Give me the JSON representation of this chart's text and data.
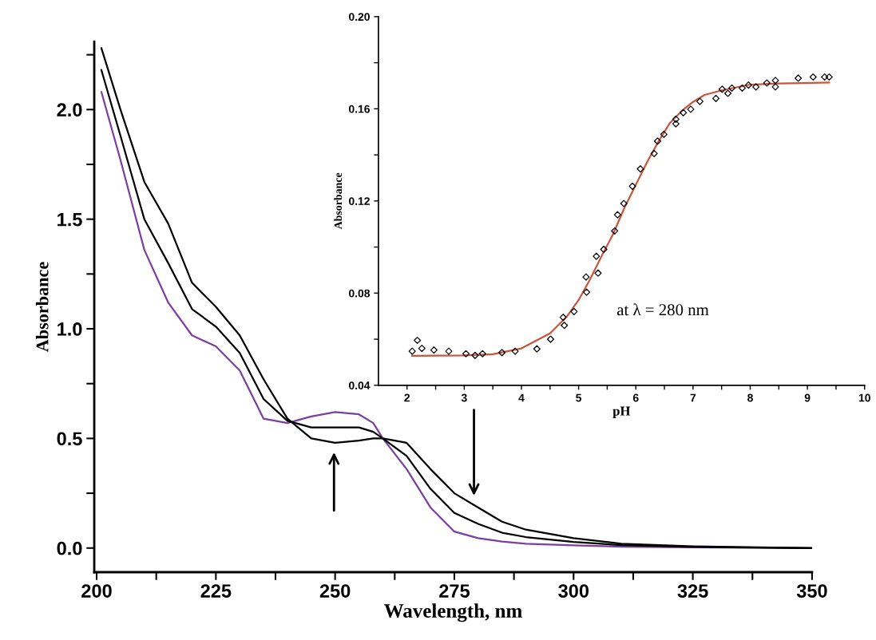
{
  "chart_data": [
    {
      "type": "line",
      "xlabel": "Wavelength, nm",
      "ylabel": "Absorbance",
      "marker": "none",
      "line_style": "solid",
      "grid": false,
      "legend": false,
      "xlim": [
        199.5,
        350
      ],
      "ylim": [
        -0.11,
        2.31
      ],
      "xticks": [
        200,
        {
          "value": 212.5,
          "label": null
        },
        225,
        {
          "value": 237.5,
          "label": null
        },
        250,
        {
          "value": 262.5,
          "label": null
        },
        275,
        {
          "value": 287.5,
          "label": null
        },
        300,
        {
          "value": 312.5,
          "label": null
        },
        325,
        {
          "value": 337.5,
          "label": null
        },
        350
      ],
      "yticks": [
        {
          "value": 0.0,
          "label": "0.0"
        },
        {
          "value": 0.25,
          "label": null
        },
        0.5,
        {
          "value": 0.75,
          "label": null
        },
        {
          "value": 1.0,
          "label": "1.0"
        },
        {
          "value": 1.25,
          "label": null
        },
        1.5,
        {
          "value": 1.75,
          "label": null
        },
        {
          "value": 2.0,
          "label": "2.0"
        },
        {
          "value": 2.25,
          "label": null
        }
      ],
      "x": [
        201,
        205,
        210,
        215,
        220,
        225,
        230,
        235,
        240,
        245,
        250,
        255,
        258,
        260,
        265,
        270,
        275,
        280,
        285,
        290,
        300,
        310,
        325,
        350
      ],
      "series": [
        {
          "color": "#7b3fa0",
          "values": [
            2.08,
            1.77,
            1.36,
            1.12,
            0.97,
            0.92,
            0.81,
            0.59,
            0.57,
            0.6,
            0.62,
            0.61,
            0.57,
            0.5,
            0.36,
            0.185,
            0.075,
            0.045,
            0.03,
            0.02,
            0.012,
            0.006,
            0.003,
            0.0
          ]
        },
        {
          "color": "#000000",
          "values": [
            2.18,
            1.88,
            1.5,
            1.3,
            1.09,
            1.01,
            0.89,
            0.68,
            0.58,
            0.55,
            0.55,
            0.55,
            0.53,
            0.5,
            0.42,
            0.27,
            0.16,
            0.11,
            0.07,
            0.05,
            0.028,
            0.013,
            0.005,
            0.0
          ]
        },
        {
          "color": "#000000",
          "values": [
            2.28,
            2.0,
            1.67,
            1.48,
            1.21,
            1.1,
            0.97,
            0.77,
            0.59,
            0.5,
            0.48,
            0.49,
            0.5,
            0.5,
            0.48,
            0.36,
            0.25,
            0.185,
            0.12,
            0.084,
            0.045,
            0.02,
            0.008,
            0.0
          ]
        }
      ]
    },
    {
      "type": "scatter",
      "xlabel": "pH",
      "ylabel": "Absorbance",
      "grid": false,
      "legend": false,
      "xlim": [
        1.5,
        10
      ],
      "ylim": [
        0.04,
        0.2
      ],
      "xticks": [
        2,
        {
          "value": 2.5,
          "label": null
        },
        3,
        {
          "value": 3.5,
          "label": null
        },
        4,
        {
          "value": 4.5,
          "label": null
        },
        5,
        {
          "value": 5.5,
          "label": null
        },
        6,
        {
          "value": 6.5,
          "label": null
        },
        7,
        {
          "value": 7.5,
          "label": null
        },
        8,
        {
          "value": 8.5,
          "label": null
        },
        9,
        {
          "value": 9.5,
          "label": null
        },
        10
      ],
      "yticks": [
        0.04,
        {
          "value": 0.06,
          "label": null
        },
        0.08,
        {
          "value": 0.1,
          "label": null
        },
        0.12,
        {
          "value": 0.14,
          "label": null
        },
        0.16,
        {
          "value": 0.18,
          "label": null
        },
        {
          "value": 0.2,
          "label": "0.20"
        }
      ],
      "annotations": [
        "at λ = 280 nm"
      ],
      "series": [
        {
          "type": "scatter",
          "marker": "diamond",
          "color": "#000000",
          "x": [
            2.09,
            2.18,
            2.26,
            2.47,
            2.73,
            3.03,
            3.19,
            3.32,
            3.66,
            3.89,
            4.27,
            4.51,
            4.73,
            4.75,
            4.92,
            5.14,
            5.13,
            5.34,
            5.31,
            5.44,
            5.63,
            5.68,
            5.79,
            5.94,
            6.08,
            6.32,
            6.38,
            6.49,
            6.7,
            6.7,
            6.83,
            6.96,
            7.12,
            7.4,
            7.51,
            7.61,
            7.68,
            7.86,
            7.97,
            8.1,
            8.29,
            8.44,
            8.44,
            8.84,
            9.1,
            9.3,
            9.38
          ],
          "values": [
            0.0548,
            0.0595,
            0.056,
            0.0553,
            0.0548,
            0.0537,
            0.053,
            0.0537,
            0.0542,
            0.0548,
            0.0558,
            0.06,
            0.0695,
            0.066,
            0.072,
            0.0804,
            0.087,
            0.0887,
            0.096,
            0.099,
            0.107,
            0.114,
            0.1189,
            0.1264,
            0.1339,
            0.1406,
            0.146,
            0.1489,
            0.1535,
            0.1555,
            0.1583,
            0.1598,
            0.1632,
            0.1645,
            0.1685,
            0.1667,
            0.169,
            0.169,
            0.1703,
            0.1695,
            0.1712,
            0.1695,
            0.1723,
            0.1733,
            0.1738,
            0.1738,
            0.1738
          ]
        },
        {
          "type": "line",
          "marker": "none",
          "line_style": "solid",
          "color": "#c8553d",
          "x": [
            2.09,
            3.0,
            3.5,
            4.0,
            4.5,
            4.8,
            5.0,
            5.2,
            5.4,
            5.6,
            5.8,
            6.0,
            6.2,
            6.4,
            6.6,
            6.8,
            7.0,
            7.2,
            7.5,
            8.0,
            8.5,
            9.38
          ],
          "values": [
            0.0528,
            0.053,
            0.0535,
            0.056,
            0.0625,
            0.07,
            0.077,
            0.086,
            0.096,
            0.1055,
            0.117,
            0.127,
            0.137,
            0.146,
            0.154,
            0.159,
            0.163,
            0.166,
            0.168,
            0.1705,
            0.171,
            0.1714
          ]
        }
      ]
    }
  ]
}
